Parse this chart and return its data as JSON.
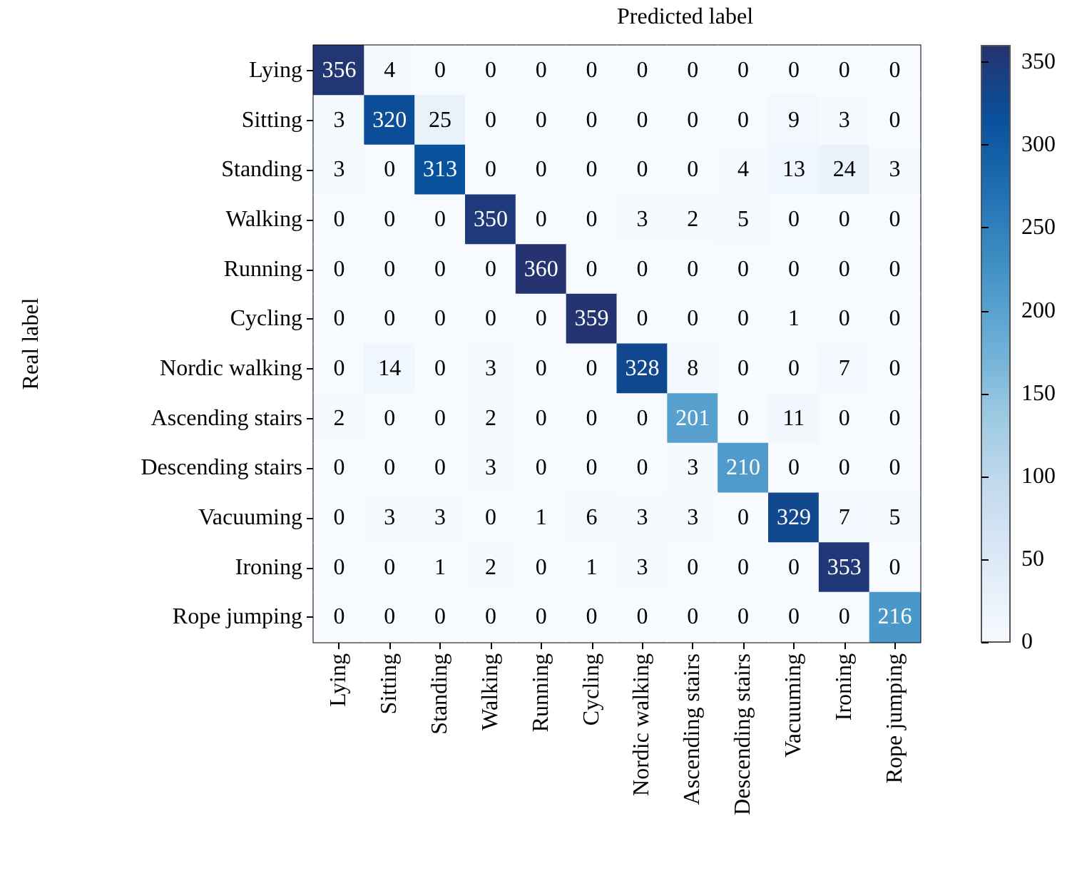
{
  "chart_data": {
    "type": "heatmap",
    "xlabel": "Predicted label",
    "ylabel": "Real label",
    "categories": [
      "Lying",
      "Sitting",
      "Standing",
      "Walking",
      "Running",
      "Cycling",
      "Nordic walking",
      "Ascending stairs",
      "Descending stairs",
      "Vacuuming",
      "Ironing",
      "Rope jumping"
    ],
    "y_categories": [
      "Lying",
      "Sitting",
      "Standing",
      "Walking",
      "Running",
      "Cycling",
      "Nordic walking",
      "Ascending stairs",
      "Descending stairs",
      "Vacuuming",
      "Ironing",
      "Rope jumping"
    ],
    "cells": [
      [
        356,
        4,
        0,
        0,
        0,
        0,
        0,
        0,
        0,
        0,
        0,
        0
      ],
      [
        3,
        320,
        25,
        0,
        0,
        0,
        0,
        0,
        0,
        9,
        3,
        0
      ],
      [
        3,
        0,
        313,
        0,
        0,
        0,
        0,
        0,
        4,
        13,
        24,
        3
      ],
      [
        0,
        0,
        0,
        350,
        0,
        0,
        3,
        2,
        5,
        0,
        0,
        0
      ],
      [
        0,
        0,
        0,
        0,
        360,
        0,
        0,
        0,
        0,
        0,
        0,
        0
      ],
      [
        0,
        0,
        0,
        0,
        0,
        359,
        0,
        0,
        0,
        1,
        0,
        0
      ],
      [
        0,
        14,
        0,
        3,
        0,
        0,
        328,
        8,
        0,
        0,
        7,
        0
      ],
      [
        2,
        0,
        0,
        2,
        0,
        0,
        0,
        201,
        0,
        11,
        0,
        0
      ],
      [
        0,
        0,
        0,
        3,
        0,
        0,
        0,
        3,
        210,
        0,
        0,
        0
      ],
      [
        0,
        3,
        3,
        0,
        1,
        6,
        3,
        3,
        0,
        329,
        7,
        5
      ],
      [
        0,
        0,
        1,
        2,
        0,
        1,
        3,
        0,
        0,
        0,
        353,
        0
      ],
      [
        0,
        0,
        0,
        0,
        0,
        0,
        0,
        0,
        0,
        0,
        0,
        216
      ]
    ],
    "clim": [
      0,
      360
    ],
    "cticks": [
      0,
      50,
      100,
      150,
      200,
      250,
      300,
      350
    ],
    "data_labels": true
  }
}
